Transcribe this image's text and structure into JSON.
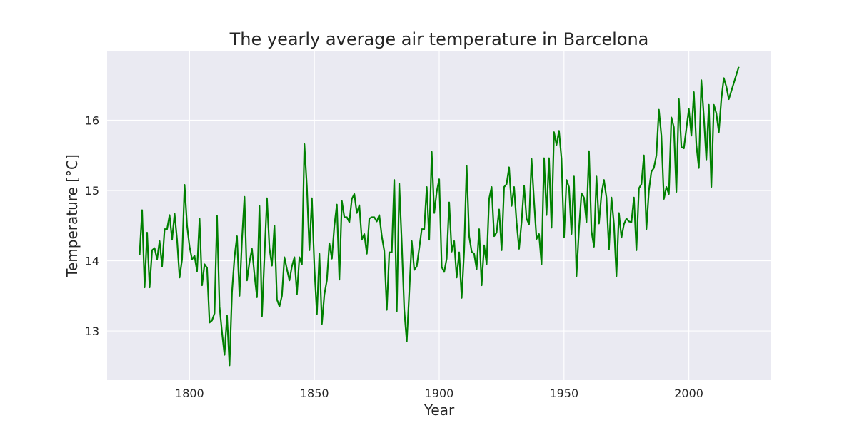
{
  "chart_data": {
    "type": "line",
    "title": "The yearly average air temperature in Barcelona",
    "xlabel": "Year",
    "ylabel": "Temperature [°C]",
    "xlim": [
      1767,
      2033
    ],
    "ylim": [
      12.3,
      16.98
    ],
    "xticks": [
      1800,
      1850,
      1900,
      1950,
      2000
    ],
    "yticks": [
      13,
      14,
      15,
      16
    ],
    "grid": true,
    "background": "#eaeaf2",
    "line_color": "#008000",
    "series": [
      {
        "x": [
          1780,
          1781,
          1782,
          1783,
          1784,
          1785,
          1786,
          1787,
          1788,
          1789,
          1790,
          1791,
          1792,
          1793,
          1794,
          1795,
          1796,
          1797,
          1798,
          1799,
          1800,
          1801,
          1802,
          1803,
          1804,
          1805,
          1806,
          1807,
          1808,
          1809,
          1810,
          1811,
          1812,
          1813,
          1814,
          1815,
          1816,
          1817,
          1818,
          1819,
          1820,
          1821,
          1822,
          1823,
          1824,
          1825,
          1826,
          1827,
          1828,
          1829,
          1830,
          1831,
          1832,
          1833,
          1834,
          1835,
          1836,
          1837,
          1838,
          1839,
          1840,
          1841,
          1842,
          1843,
          1844,
          1845,
          1846,
          1847,
          1848,
          1849,
          1850,
          1851,
          1852,
          1853,
          1854,
          1855,
          1856,
          1857,
          1858,
          1859,
          1860,
          1861,
          1862,
          1863,
          1864,
          1865,
          1866,
          1867,
          1868,
          1869,
          1870,
          1871,
          1872,
          1873,
          1874,
          1875,
          1876,
          1877,
          1878,
          1879,
          1880,
          1881,
          1882,
          1883,
          1884,
          1885,
          1886,
          1887,
          1888,
          1889,
          1890,
          1891,
          1892,
          1893,
          1894,
          1895,
          1896,
          1897,
          1898,
          1899,
          1900,
          1901,
          1902,
          1903,
          1904,
          1905,
          1906,
          1907,
          1908,
          1909,
          1910,
          1911,
          1912,
          1913,
          1914,
          1915,
          1916,
          1917,
          1918,
          1919,
          1920,
          1921,
          1922,
          1923,
          1924,
          1925,
          1926,
          1927,
          1928,
          1929,
          1930,
          1931,
          1932,
          1933,
          1934,
          1935,
          1936,
          1937,
          1938,
          1939,
          1940,
          1941,
          1942,
          1943,
          1944,
          1945,
          1946,
          1947,
          1948,
          1949,
          1950,
          1951,
          1952,
          1953,
          1954,
          1955,
          1956,
          1957,
          1958,
          1959,
          1960,
          1961,
          1962,
          1963,
          1964,
          1965,
          1966,
          1967,
          1968,
          1969,
          1970,
          1971,
          1972,
          1973,
          1974,
          1975,
          1976,
          1977,
          1978,
          1979,
          1980,
          1981,
          1982,
          1983,
          1984,
          1985,
          1986,
          1987,
          1988,
          1989,
          1990,
          1991,
          1992,
          1993,
          1994,
          1995,
          1996,
          1997,
          1998,
          1999,
          2000,
          2001,
          2002,
          2003,
          2004,
          2005,
          2006,
          2007,
          2008,
          2009,
          2010,
          2011,
          2012,
          2013,
          2014,
          2015,
          2016,
          2020
        ],
        "y": [
          14.08,
          14.72,
          13.62,
          14.4,
          13.62,
          14.15,
          14.18,
          14.02,
          14.28,
          13.92,
          14.45,
          14.45,
          14.65,
          14.3,
          14.67,
          14.3,
          13.76,
          14.02,
          15.08,
          14.5,
          14.2,
          14.02,
          14.07,
          13.85,
          14.6,
          13.65,
          13.95,
          13.9,
          13.12,
          13.15,
          13.25,
          14.64,
          13.35,
          12.98,
          12.66,
          13.22,
          12.51,
          13.55,
          14.05,
          14.35,
          13.5,
          14.3,
          14.91,
          13.72,
          13.98,
          14.17,
          13.8,
          13.48,
          14.78,
          13.21,
          14.06,
          14.89,
          14.18,
          13.93,
          14.5,
          13.45,
          13.35,
          13.5,
          14.05,
          13.88,
          13.72,
          13.92,
          14.05,
          13.52,
          14.05,
          13.95,
          15.66,
          15.05,
          14.15,
          14.89,
          13.9,
          13.24,
          14.1,
          13.1,
          13.52,
          13.72,
          14.25,
          14.03,
          14.5,
          14.8,
          13.73,
          14.85,
          14.62,
          14.62,
          14.55,
          14.88,
          14.95,
          14.68,
          14.79,
          14.3,
          14.38,
          14.1,
          14.6,
          14.62,
          14.62,
          14.56,
          14.65,
          14.35,
          14.14,
          13.3,
          14.12,
          14.12,
          15.15,
          13.28,
          15.1,
          14.25,
          13.3,
          12.85,
          13.55,
          14.28,
          13.87,
          13.92,
          14.18,
          14.45,
          14.45,
          15.05,
          14.3,
          15.55,
          14.68,
          14.98,
          15.16,
          13.91,
          13.84,
          14.03,
          14.83,
          14.13,
          14.28,
          13.76,
          14.12,
          13.47,
          14.14,
          15.35,
          14.35,
          14.13,
          14.1,
          13.88,
          14.45,
          13.65,
          14.22,
          13.95,
          14.88,
          15.05,
          14.35,
          14.4,
          14.73,
          14.15,
          15.05,
          15.09,
          15.33,
          14.78,
          15.05,
          14.55,
          14.17,
          14.55,
          15.07,
          14.6,
          14.52,
          15.45,
          14.85,
          14.31,
          14.38,
          13.95,
          15.46,
          14.65,
          15.46,
          14.47,
          15.83,
          15.65,
          15.85,
          15.45,
          14.33,
          15.15,
          15.05,
          14.38,
          15.2,
          13.78,
          14.45,
          14.96,
          14.9,
          14.55,
          15.56,
          14.42,
          14.2,
          15.2,
          14.53,
          14.95,
          15.15,
          14.9,
          14.16,
          14.9,
          14.52,
          13.78,
          14.68,
          14.33,
          14.52,
          14.6,
          14.56,
          14.55,
          14.9,
          14.15,
          15.03,
          15.09,
          15.5,
          14.45,
          15.0,
          15.27,
          15.32,
          15.5,
          16.15,
          15.78,
          14.88,
          15.05,
          14.95,
          16.04,
          15.9,
          14.98,
          16.3,
          15.62,
          15.6,
          15.88,
          16.16,
          15.78,
          16.4,
          15.65,
          15.32,
          16.57,
          16.05,
          15.44,
          16.22,
          15.05,
          16.22,
          16.1,
          15.83,
          16.3,
          16.6,
          16.48,
          16.3,
          16.76
        ]
      }
    ]
  }
}
